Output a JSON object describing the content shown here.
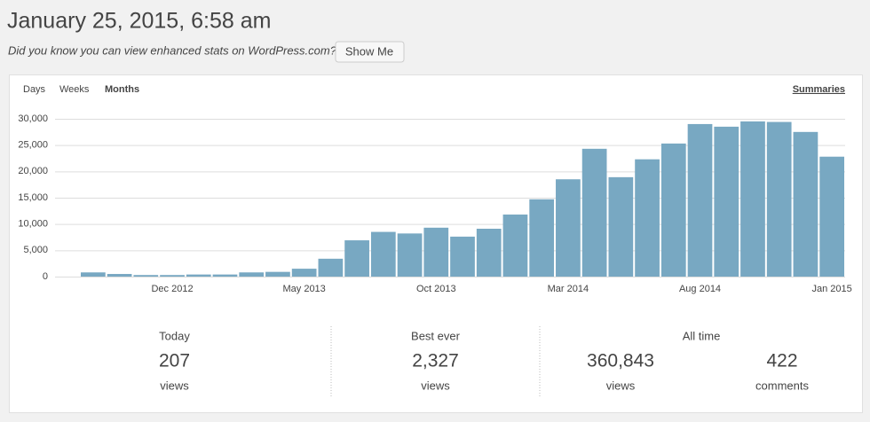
{
  "header": {
    "title": "January 25, 2015, 6:58 am",
    "notice": "Did you know you can view enhanced stats on WordPress.com?",
    "button": "Show Me"
  },
  "tabs": [
    "Days",
    "Weeks",
    "Months"
  ],
  "summaries": "Summaries",
  "chart_data": {
    "type": "bar",
    "categories": [
      null,
      null,
      null,
      "Dec 2012",
      null,
      null,
      null,
      null,
      "May 2013",
      null,
      null,
      null,
      null,
      "Oct 2013",
      null,
      null,
      null,
      null,
      "Mar 2014",
      null,
      null,
      null,
      null,
      "Aug 2014",
      null,
      null,
      null,
      null,
      "Jan 2015"
    ],
    "values": [
      800,
      500,
      300,
      300,
      400,
      400,
      800,
      900,
      1500,
      3400,
      6900,
      8500,
      8200,
      9300,
      7600,
      9100,
      11800,
      14700,
      18500,
      24300,
      18900,
      22300,
      25300,
      29000,
      28500,
      29500,
      29400,
      27500,
      22800
    ],
    "color": "#78a8c2",
    "ylim": [
      0,
      30000
    ],
    "yticks": [
      0,
      {
        "value": 5000,
        "label": "5,000"
      },
      {
        "value": 10000,
        "label": "10,000"
      },
      {
        "value": 15000,
        "label": "15,000"
      },
      {
        "value": 20000,
        "label": "20,000"
      },
      {
        "value": 25000,
        "label": "25,000"
      },
      {
        "value": 30000,
        "label": "30,000"
      }
    ],
    "grid": true
  },
  "stats": [
    {
      "label": "Today",
      "items": [
        {
          "number": "207",
          "unit": "views"
        }
      ]
    },
    {
      "label": "Best ever",
      "items": [
        {
          "number": "2,327",
          "unit": "views"
        }
      ]
    },
    {
      "label": "All time",
      "items": [
        {
          "number": "360,843",
          "unit": "views"
        },
        {
          "number": "422",
          "unit": "comments"
        }
      ]
    }
  ]
}
